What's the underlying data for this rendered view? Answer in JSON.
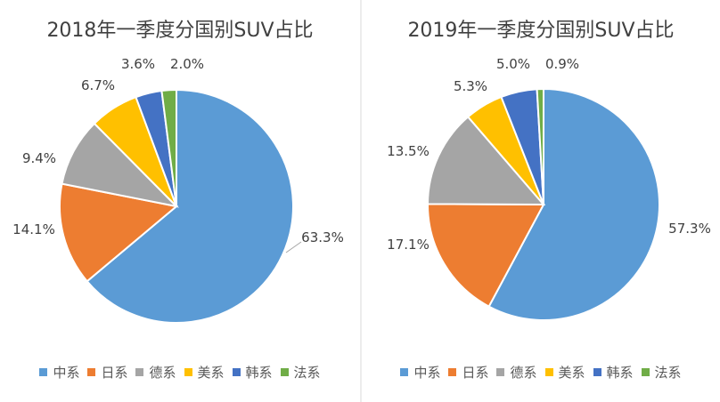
{
  "chart_data": [
    {
      "type": "pie",
      "title": "2018年一季度分国别SUV占比",
      "categories": [
        "中系",
        "日系",
        "德系",
        "美系",
        "韩系",
        "法系"
      ],
      "values": [
        63.3,
        14.1,
        9.4,
        6.7,
        3.6,
        2.0
      ],
      "value_labels": [
        "63.3%",
        "14.1%",
        "9.4%",
        "6.7%",
        "3.6%",
        "2.0%"
      ],
      "colors": [
        "#5b9bd5",
        "#ed7d31",
        "#a5a5a5",
        "#ffc000",
        "#4472c4",
        "#70ad47"
      ],
      "legend": "bottom"
    },
    {
      "type": "pie",
      "title": "2019年一季度分国别SUV占比",
      "categories": [
        "中系",
        "日系",
        "德系",
        "美系",
        "韩系",
        "法系"
      ],
      "values": [
        57.3,
        17.1,
        13.5,
        5.3,
        5.0,
        0.9
      ],
      "value_labels": [
        "57.3%",
        "17.1%",
        "13.5%",
        "5.3%",
        "5.0%",
        "0.9%"
      ],
      "colors": [
        "#5b9bd5",
        "#ed7d31",
        "#a5a5a5",
        "#ffc000",
        "#4472c4",
        "#70ad47"
      ],
      "legend": "bottom"
    }
  ]
}
